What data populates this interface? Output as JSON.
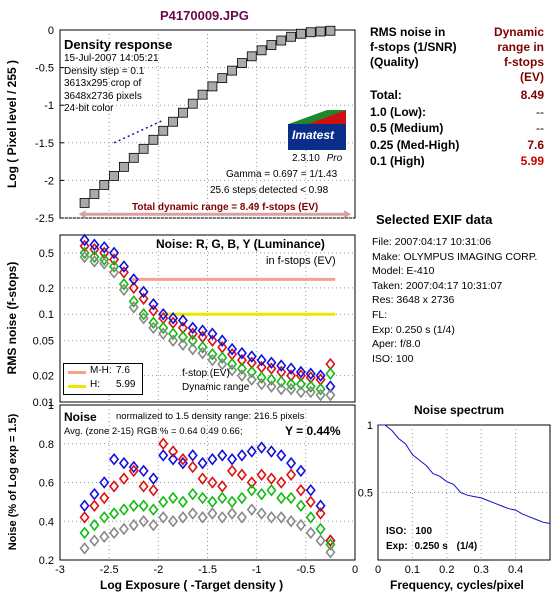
{
  "file_title": "P4170009.JPG",
  "density_panel": {
    "title": "Density response",
    "info_lines": [
      "15-Jul-2007 14:05:21",
      "Density step = 0.1",
      "3613x295 crop of",
      "3648x2736 pixels",
      "24-bit color"
    ],
    "gamma": "Gamma = 0.697 = 1/1.43",
    "steps": "25.6 steps detected < 0.98",
    "total_dr": "Total dynamic range = 8.49 f-stops (EV)",
    "logo_text": "Imatest",
    "version": "2.3.10",
    "version_suffix": "Pro"
  },
  "noise_rgb_panel": {
    "title": "Noise: R, G, B, Y (Luminance)",
    "subtitle": "in f-stops (EV)",
    "legend": [
      {
        "label": "M-H:",
        "value": "7.6",
        "color": "#f4a28c"
      },
      {
        "label": "H:",
        "value": "5.99",
        "color": "#e8e800"
      }
    ],
    "fstop_label": "f-stop (EV)",
    "dr_label": "Dynamic range"
  },
  "noise_pct_panel": {
    "title": "Noise",
    "normalized": "normalized to 1.5 density range: 216.5 pixels",
    "avg": "Avg. (zone 2-15) RGB % = 0.64  0.49  0.66;",
    "y": "Y = 0.44%"
  },
  "axes": {
    "ylabel_density": "Log ( Pixel level / 255 )",
    "ylabel_rms": "RMS noise (f-stops)",
    "ylabel_pct": "Noise (% of Log exp = 1.5)",
    "xlabel": "Log Exposure ( -Target density )",
    "x_ticks": [
      "-3",
      "-2.5",
      "-2",
      "-1.5",
      "-1",
      "-0.5",
      "0"
    ],
    "density_y_ticks": [
      "0",
      "-0.5",
      "-1",
      "-1.5",
      "-2",
      "-2.5"
    ],
    "rms_y_ticks": [
      "0.5",
      "0.2",
      "0.1",
      "0.05",
      "0.02",
      "0.01"
    ],
    "pct_y_ticks": [
      "1",
      "0.8",
      "0.6",
      "0.4",
      "0.2"
    ]
  },
  "dynamic_range_table": {
    "header_left": [
      "RMS noise in",
      "f-stops (1/SNR)",
      "(Quality)"
    ],
    "header_right": [
      "Dynamic",
      "range in",
      "f-stops (EV)"
    ],
    "rows": [
      {
        "label": "Total:",
        "value": "8.49"
      },
      {
        "label": "1.0   (Low):",
        "value": "--"
      },
      {
        "label": "0.5   (Medium)",
        "value": "--"
      },
      {
        "label": "0.25 (Med-High)",
        "value": "7.6"
      },
      {
        "label": "0.1   (High)",
        "value": "5.99"
      }
    ]
  },
  "exif": {
    "title": "Selected EXIF data",
    "lines": [
      "File:  2007:04:17 10:31:06",
      "Make:  OLYMPUS IMAGING CORP.",
      "Model: E-410",
      "Taken: 2007:04:17 10:31:07",
      "Res:   3648 x 2736",
      "FL:",
      "Exp:   0.250 s  (1/4)",
      "Aper:  f/8.0",
      "ISO:   100"
    ]
  },
  "spectrum": {
    "title": "Noise spectrum",
    "xlabel": "Frequency, cycles/pixel",
    "x_ticks": [
      "0",
      "0.1",
      "0.2",
      "0.3",
      "0.4"
    ],
    "y_ticks": [
      "1",
      "0.5"
    ],
    "iso_label": "ISO:",
    "iso_value": "100",
    "exp_label": "Exp:",
    "exp_value": "0.250 s",
    "exp_frac": "(1/4)"
  },
  "colors": {
    "red": "#dd1111",
    "green": "#11bb11",
    "blue": "#1111dd",
    "gray": "#888888",
    "title": "#6a0a4a",
    "dark_red": "#800000"
  },
  "chart_data": [
    {
      "type": "scatter",
      "name": "density",
      "x": [
        -2.75,
        -2.65,
        -2.55,
        -2.45,
        -2.35,
        -2.25,
        -2.15,
        -2.05,
        -1.95,
        -1.85,
        -1.75,
        -1.65,
        -1.55,
        -1.45,
        -1.35,
        -1.25,
        -1.15,
        -1.05,
        -0.95,
        -0.85,
        -0.75,
        -0.65,
        -0.55,
        -0.45,
        -0.35,
        -0.25
      ],
      "y": [
        -2.3,
        -2.18,
        -2.06,
        -1.94,
        -1.82,
        -1.7,
        -1.58,
        -1.46,
        -1.34,
        -1.22,
        -1.1,
        -0.98,
        -0.86,
        -0.75,
        -0.64,
        -0.54,
        -0.44,
        -0.35,
        -0.27,
        -0.2,
        -0.14,
        -0.09,
        -0.05,
        -0.03,
        -0.02,
        -0.01
      ],
      "xlim": [
        -3,
        0
      ],
      "ylim": [
        -2.5,
        0
      ]
    },
    {
      "type": "scatter",
      "name": "rms_noise",
      "x": [
        -2.75,
        -2.65,
        -2.55,
        -2.45,
        -2.35,
        -2.25,
        -2.15,
        -2.05,
        -1.95,
        -1.85,
        -1.75,
        -1.65,
        -1.55,
        -1.45,
        -1.35,
        -1.25,
        -1.15,
        -1.05,
        -0.95,
        -0.85,
        -0.75,
        -0.65,
        -0.55,
        -0.45,
        -0.35,
        -0.25
      ],
      "series": [
        {
          "name": "R",
          "values": [
            0.6,
            0.55,
            0.5,
            0.42,
            0.3,
            0.2,
            0.15,
            0.11,
            0.09,
            0.08,
            0.07,
            0.06,
            0.055,
            0.05,
            0.042,
            0.035,
            0.03,
            0.028,
            0.025,
            0.024,
            0.022,
            0.02,
            0.02,
            0.019,
            0.018,
            0.027
          ]
        },
        {
          "name": "G",
          "values": [
            0.5,
            0.45,
            0.42,
            0.35,
            0.22,
            0.14,
            0.1,
            0.08,
            0.07,
            0.06,
            0.055,
            0.05,
            0.042,
            0.035,
            0.032,
            0.027,
            0.024,
            0.022,
            0.019,
            0.018,
            0.017,
            0.016,
            0.016,
            0.015,
            0.014,
            0.021
          ]
        },
        {
          "name": "B",
          "values": [
            0.7,
            0.62,
            0.58,
            0.5,
            0.35,
            0.25,
            0.18,
            0.13,
            0.1,
            0.09,
            0.085,
            0.07,
            0.065,
            0.06,
            0.05,
            0.04,
            0.036,
            0.033,
            0.03,
            0.028,
            0.026,
            0.024,
            0.022,
            0.021,
            0.02,
            0.015
          ]
        },
        {
          "name": "Y",
          "values": [
            0.45,
            0.4,
            0.38,
            0.3,
            0.19,
            0.12,
            0.09,
            0.07,
            0.06,
            0.05,
            0.045,
            0.04,
            0.036,
            0.03,
            0.027,
            0.023,
            0.02,
            0.018,
            0.016,
            0.015,
            0.014,
            0.014,
            0.013,
            0.013,
            0.012,
            0.012
          ]
        }
      ],
      "hlines": [
        0.25,
        0.1
      ],
      "xlim": [
        -3,
        0
      ],
      "ylim": [
        0.01,
        0.8
      ],
      "yscale": "log"
    },
    {
      "type": "scatter",
      "name": "noise_percent",
      "x": [
        -2.75,
        -2.65,
        -2.55,
        -2.45,
        -2.35,
        -2.25,
        -2.15,
        -2.05,
        -1.95,
        -1.85,
        -1.75,
        -1.65,
        -1.55,
        -1.45,
        -1.35,
        -1.25,
        -1.15,
        -1.05,
        -0.95,
        -0.85,
        -0.75,
        -0.65,
        -0.55,
        -0.45,
        -0.35,
        -0.25
      ],
      "series": [
        {
          "name": "B",
          "values": [
            0.48,
            0.54,
            0.6,
            0.72,
            0.7,
            0.68,
            0.66,
            0.62,
            0.74,
            0.72,
            0.7,
            0.74,
            0.7,
            0.72,
            0.74,
            0.72,
            0.74,
            0.76,
            0.78,
            0.76,
            0.74,
            0.7,
            0.66,
            0.56,
            0.48,
            0.3
          ]
        },
        {
          "name": "R",
          "values": [
            0.42,
            0.48,
            0.52,
            0.58,
            0.62,
            0.66,
            0.58,
            0.56,
            0.8,
            0.76,
            0.72,
            0.68,
            0.62,
            0.6,
            0.58,
            0.66,
            0.64,
            0.6,
            0.64,
            0.62,
            0.6,
            0.64,
            0.56,
            0.5,
            0.44,
            0.3
          ]
        },
        {
          "name": "G",
          "values": [
            0.34,
            0.38,
            0.42,
            0.44,
            0.46,
            0.48,
            0.48,
            0.46,
            0.5,
            0.52,
            0.5,
            0.54,
            0.52,
            0.5,
            0.52,
            0.5,
            0.52,
            0.56,
            0.54,
            0.56,
            0.52,
            0.52,
            0.48,
            0.42,
            0.36,
            0.28
          ]
        },
        {
          "name": "Y",
          "values": [
            0.26,
            0.3,
            0.32,
            0.34,
            0.36,
            0.38,
            0.4,
            0.38,
            0.42,
            0.4,
            0.42,
            0.44,
            0.42,
            0.44,
            0.42,
            0.44,
            0.42,
            0.46,
            0.44,
            0.42,
            0.42,
            0.4,
            0.38,
            0.34,
            0.3,
            0.24
          ]
        }
      ],
      "xlim": [
        -3,
        0
      ],
      "ylim": [
        0.2,
        1.0
      ]
    },
    {
      "type": "line",
      "name": "noise_spectrum",
      "x": [
        0,
        0.02,
        0.04,
        0.06,
        0.08,
        0.1,
        0.12,
        0.14,
        0.16,
        0.18,
        0.2,
        0.22,
        0.24,
        0.26,
        0.28,
        0.3,
        0.32,
        0.34,
        0.36,
        0.38,
        0.4,
        0.42,
        0.44,
        0.46,
        0.48,
        0.5
      ],
      "y": [
        1.0,
        1.0,
        0.96,
        0.9,
        0.86,
        0.78,
        0.74,
        0.7,
        0.64,
        0.62,
        0.58,
        0.56,
        0.5,
        0.48,
        0.47,
        0.46,
        0.44,
        0.42,
        0.4,
        0.38,
        0.37,
        0.34,
        0.32,
        0.3,
        0.28,
        0.27
      ],
      "xlim": [
        0,
        0.5
      ],
      "ylim": [
        0,
        1
      ]
    }
  ]
}
